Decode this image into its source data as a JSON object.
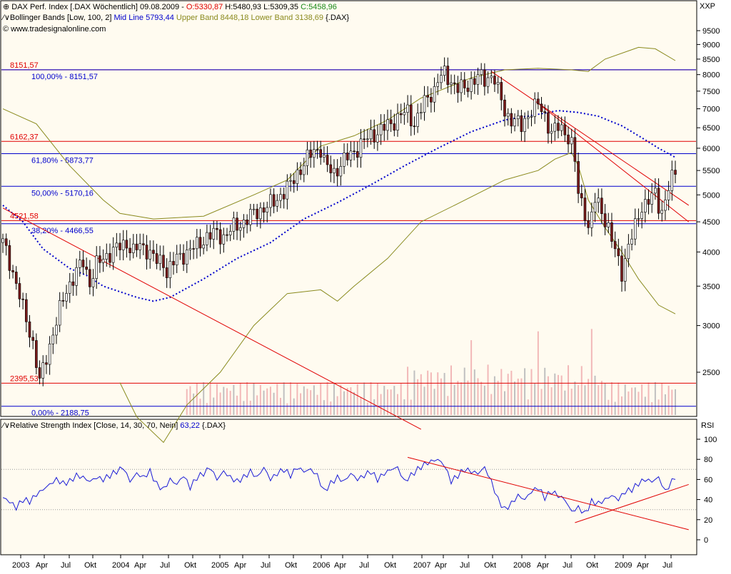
{
  "colors": {
    "background": "#fffbf0",
    "border": "#000000",
    "up_candle": "#f2f2f2",
    "down_candle": "#7a1a1a",
    "wick": "#000000",
    "fib_level": "#0000cc",
    "horizontal_red": "#e00000",
    "trendline_red": "#e00000",
    "bollinger_band": "#8a8a1e",
    "bollinger_mid": "#0000cc",
    "rsi_line": "#1a1ad6",
    "volume_up": "#f2b8b8",
    "volume_down": "#c0c0c0"
  },
  "header": {
    "line1_prefix": "DAX Perf. Index [.DAX  Wöchentlich] 09.08.2009 - ",
    "open": "O:5330,87",
    "high_low": " H:5480,93 L:5309,35 ",
    "close": "C:5458,96",
    "line2_prefix": "Bollinger Bands [Low, 100, 2] ",
    "mid_label": "Mid Line 5793,44",
    "upper_label": " Upper Band 8448,18",
    "lower_label": " Lower Band 3138,69",
    "line2_suffix": " {.DAX}",
    "source": "© www.tradesignalonline.com",
    "currency": "XXP"
  },
  "rsi_header": {
    "label": "Relative Strength Index [Close, 14, 30, 70, Nein] ",
    "value": "63,22",
    "suffix": " {.DAX}",
    "axis_label": "RSI"
  },
  "chart_data": [
    {
      "type": "candlestick",
      "title": "DAX Perf. Index (weekly)",
      "x_labels": [
        "2003",
        "Apr",
        "Jul",
        "Okt",
        "2004",
        "Apr",
        "Jul",
        "Okt",
        "2005",
        "Apr",
        "Jul",
        "Okt",
        "2006",
        "Apr",
        "Jul",
        "Okt",
        "2007",
        "Apr",
        "Jul",
        "Okt",
        "2008",
        "Apr",
        "Jul",
        "Okt",
        "2009",
        "Apr",
        "Jul"
      ],
      "y_ticks": [
        9500,
        9000,
        8500,
        8000,
        7500,
        7000,
        6500,
        6000,
        5500,
        5000,
        4500,
        4000,
        3500,
        3000,
        2500
      ],
      "horizontal_levels_red": [
        {
          "value": 8151.57,
          "label": "8151,57"
        },
        {
          "value": 6162.37,
          "label": "6162,37"
        },
        {
          "value": 4521.58,
          "label": "4521,58"
        },
        {
          "value": 2395.53,
          "label": "2395,53"
        }
      ],
      "fibonacci_levels": [
        {
          "value": 8151.57,
          "label": "100,00% - 8151,57"
        },
        {
          "value": 5873.77,
          "label": "61,80% - 5873,77"
        },
        {
          "value": 5170.16,
          "label": "50,00% - 5170,16"
        },
        {
          "value": 4466.55,
          "label": "38,20% - 4466,55"
        },
        {
          "value": 2188.75,
          "label": "0,00% - 2188,75"
        }
      ],
      "price_path": [
        [
          0,
          4150
        ],
        [
          3,
          3700
        ],
        [
          6,
          3200
        ],
        [
          9,
          2800
        ],
        [
          11,
          2400
        ],
        [
          13,
          2650
        ],
        [
          16,
          3050
        ],
        [
          19,
          3450
        ],
        [
          22,
          3700
        ],
        [
          24,
          3850
        ],
        [
          26,
          3550
        ],
        [
          28,
          3800
        ],
        [
          31,
          3950
        ],
        [
          34,
          4050
        ],
        [
          37,
          4150
        ],
        [
          39,
          4000
        ],
        [
          41,
          4100
        ],
        [
          43,
          4050
        ],
        [
          46,
          3850
        ],
        [
          48,
          3850
        ],
        [
          49,
          3700
        ],
        [
          52,
          3900
        ],
        [
          55,
          4000
        ],
        [
          58,
          4100
        ],
        [
          61,
          4250
        ],
        [
          64,
          4300
        ],
        [
          66,
          4250
        ],
        [
          69,
          4400
        ],
        [
          72,
          4500
        ],
        [
          75,
          4650
        ],
        [
          78,
          4750
        ],
        [
          81,
          4850
        ],
        [
          83,
          5000
        ],
        [
          86,
          5200
        ],
        [
          88,
          5450
        ],
        [
          90,
          5650
        ],
        [
          91,
          5750
        ],
        [
          93,
          5950
        ],
        [
          95,
          6000
        ],
        [
          96,
          5700
        ],
        [
          97,
          5550
        ],
        [
          99,
          5450
        ],
        [
          101,
          5650
        ],
        [
          104,
          5850
        ],
        [
          107,
          6100
        ],
        [
          110,
          6300
        ],
        [
          113,
          6450
        ],
        [
          116,
          6600
        ],
        [
          119,
          6850
        ],
        [
          121,
          6900
        ],
        [
          123,
          6600
        ],
        [
          125,
          7000
        ],
        [
          127,
          7300
        ],
        [
          129,
          7550
        ],
        [
          130,
          7850
        ],
        [
          132,
          8000
        ],
        [
          134,
          7800
        ],
        [
          136,
          7600
        ],
        [
          138,
          7550
        ],
        [
          140,
          7800
        ],
        [
          142,
          7950
        ],
        [
          144,
          7800
        ],
        [
          146,
          8000
        ],
        [
          147,
          7900
        ],
        [
          148,
          7500
        ],
        [
          150,
          6900
        ],
        [
          151,
          6800
        ],
        [
          153,
          6700
        ],
        [
          155,
          6500
        ],
        [
          157,
          6850
        ],
        [
          158,
          7000
        ],
        [
          160,
          7100
        ],
        [
          162,
          6800
        ],
        [
          164,
          6400
        ],
        [
          166,
          6500
        ],
        [
          168,
          6400
        ],
        [
          169,
          6300
        ],
        [
          170,
          6100
        ],
        [
          171,
          5700
        ],
        [
          172,
          5000
        ],
        [
          174,
          4700
        ],
        [
          175,
          4400
        ],
        [
          176,
          4600
        ],
        [
          177,
          4900
        ],
        [
          179,
          4700
        ],
        [
          181,
          4400
        ],
        [
          183,
          4000
        ],
        [
          184,
          3850
        ],
        [
          185,
          3700
        ],
        [
          187,
          4100
        ],
        [
          189,
          4400
        ],
        [
          191,
          4800
        ],
        [
          193,
          4900
        ],
        [
          195,
          5000
        ],
        [
          196,
          4800
        ],
        [
          197,
          4700
        ],
        [
          199,
          5150
        ],
        [
          200,
          5300
        ],
        [
          201,
          5450
        ]
      ],
      "bollinger_upper": [
        [
          0,
          7000
        ],
        [
          10,
          6600
        ],
        [
          20,
          5600
        ],
        [
          30,
          4900
        ],
        [
          35,
          4650
        ],
        [
          45,
          4550
        ],
        [
          60,
          4600
        ],
        [
          75,
          5000
        ],
        [
          85,
          5300
        ],
        [
          95,
          6050
        ],
        [
          105,
          6300
        ],
        [
          115,
          6700
        ],
        [
          125,
          7300
        ],
        [
          140,
          7900
        ],
        [
          150,
          8150
        ],
        [
          160,
          8200
        ],
        [
          170,
          8150
        ],
        [
          175,
          8100
        ],
        [
          180,
          8500
        ],
        [
          190,
          8900
        ],
        [
          195,
          8850
        ],
        [
          201,
          8450
        ]
      ],
      "bollinger_lower": [
        [
          35,
          2400
        ],
        [
          40,
          2100
        ],
        [
          48,
          1900
        ],
        [
          55,
          2200
        ],
        [
          65,
          2500
        ],
        [
          75,
          3000
        ],
        [
          85,
          3400
        ],
        [
          95,
          3450
        ],
        [
          100,
          3300
        ],
        [
          105,
          3500
        ],
        [
          115,
          3900
        ],
        [
          125,
          4500
        ],
        [
          135,
          4800
        ],
        [
          150,
          5300
        ],
        [
          160,
          5500
        ],
        [
          165,
          5750
        ],
        [
          170,
          5900
        ],
        [
          172,
          5600
        ],
        [
          175,
          4900
        ],
        [
          180,
          4400
        ],
        [
          185,
          4000
        ],
        [
          190,
          3600
        ],
        [
          196,
          3250
        ],
        [
          201,
          3140
        ]
      ],
      "bollinger_mid": [
        [
          0,
          4800
        ],
        [
          6,
          4500
        ],
        [
          12,
          4050
        ],
        [
          20,
          3750
        ],
        [
          25,
          3650
        ],
        [
          30,
          3500
        ],
        [
          40,
          3350
        ],
        [
          45,
          3300
        ],
        [
          50,
          3350
        ],
        [
          60,
          3600
        ],
        [
          70,
          3900
        ],
        [
          80,
          4150
        ],
        [
          90,
          4550
        ],
        [
          100,
          4850
        ],
        [
          110,
          5200
        ],
        [
          120,
          5600
        ],
        [
          130,
          6000
        ],
        [
          140,
          6400
        ],
        [
          150,
          6700
        ],
        [
          160,
          6850
        ],
        [
          166,
          6950
        ],
        [
          172,
          6900
        ],
        [
          178,
          6800
        ],
        [
          185,
          6550
        ],
        [
          191,
          6250
        ],
        [
          196,
          6000
        ],
        [
          201,
          5790
        ]
      ],
      "trendlines": [
        [
          [
            0,
            4750
          ],
          [
            125,
            2000
          ]
        ],
        [
          [
            146,
            8100
          ],
          [
            205,
            4800
          ]
        ],
        [
          [
            160,
            7150
          ],
          [
            205,
            4500
          ]
        ]
      ],
      "volume": [
        {
          "from": 55,
          "to": 201,
          "base": 0.35
        }
      ]
    },
    {
      "type": "line",
      "title": "Relative Strength Index [Close, 14, 30, 70]",
      "y_ticks": [
        100,
        80,
        60,
        40,
        20,
        0
      ],
      "guide_levels": [
        70,
        30
      ],
      "last_value": 63.22,
      "rsi_path": [
        [
          0,
          42
        ],
        [
          2,
          38
        ],
        [
          4,
          32
        ],
        [
          6,
          40
        ],
        [
          8,
          38
        ],
        [
          10,
          45
        ],
        [
          12,
          50
        ],
        [
          14,
          55
        ],
        [
          16,
          60
        ],
        [
          18,
          56
        ],
        [
          20,
          58
        ],
        [
          22,
          64
        ],
        [
          24,
          62
        ],
        [
          26,
          58
        ],
        [
          28,
          62
        ],
        [
          30,
          60
        ],
        [
          32,
          64
        ],
        [
          34,
          68
        ],
        [
          36,
          72
        ],
        [
          38,
          58
        ],
        [
          40,
          66
        ],
        [
          42,
          62
        ],
        [
          44,
          68
        ],
        [
          46,
          55
        ],
        [
          48,
          50
        ],
        [
          50,
          60
        ],
        [
          52,
          55
        ],
        [
          54,
          64
        ],
        [
          56,
          52
        ],
        [
          58,
          62
        ],
        [
          60,
          66
        ],
        [
          62,
          72
        ],
        [
          64,
          60
        ],
        [
          66,
          68
        ],
        [
          68,
          62
        ],
        [
          70,
          58
        ],
        [
          72,
          62
        ],
        [
          74,
          68
        ],
        [
          76,
          62
        ],
        [
          78,
          72
        ],
        [
          80,
          60
        ],
        [
          82,
          66
        ],
        [
          84,
          70
        ],
        [
          86,
          64
        ],
        [
          88,
          72
        ],
        [
          90,
          68
        ],
        [
          92,
          70
        ],
        [
          94,
          64
        ],
        [
          96,
          48
        ],
        [
          98,
          56
        ],
        [
          100,
          62
        ],
        [
          102,
          58
        ],
        [
          104,
          66
        ],
        [
          106,
          60
        ],
        [
          108,
          64
        ],
        [
          110,
          68
        ],
        [
          112,
          60
        ],
        [
          114,
          66
        ],
        [
          116,
          70
        ],
        [
          118,
          72
        ],
        [
          120,
          58
        ],
        [
          122,
          64
        ],
        [
          124,
          70
        ],
        [
          126,
          75
        ],
        [
          128,
          78
        ],
        [
          130,
          80
        ],
        [
          132,
          74
        ],
        [
          134,
          58
        ],
        [
          136,
          64
        ],
        [
          138,
          70
        ],
        [
          140,
          68
        ],
        [
          142,
          66
        ],
        [
          144,
          72
        ],
        [
          146,
          58
        ],
        [
          148,
          40
        ],
        [
          150,
          30
        ],
        [
          152,
          36
        ],
        [
          154,
          44
        ],
        [
          156,
          40
        ],
        [
          158,
          48
        ],
        [
          160,
          52
        ],
        [
          162,
          42
        ],
        [
          164,
          48
        ],
        [
          166,
          44
        ],
        [
          168,
          40
        ],
        [
          170,
          28
        ],
        [
          172,
          32
        ],
        [
          174,
          26
        ],
        [
          176,
          38
        ],
        [
          178,
          36
        ],
        [
          180,
          40
        ],
        [
          182,
          44
        ],
        [
          184,
          40
        ],
        [
          186,
          48
        ],
        [
          188,
          50
        ],
        [
          190,
          56
        ],
        [
          192,
          60
        ],
        [
          194,
          58
        ],
        [
          196,
          62
        ],
        [
          198,
          48
        ],
        [
          200,
          58
        ],
        [
          201,
          63
        ]
      ],
      "trendlines": [
        [
          [
            121,
            82
          ],
          [
            205,
            10
          ]
        ],
        [
          [
            171,
            17
          ],
          [
            205,
            55
          ]
        ]
      ]
    }
  ]
}
